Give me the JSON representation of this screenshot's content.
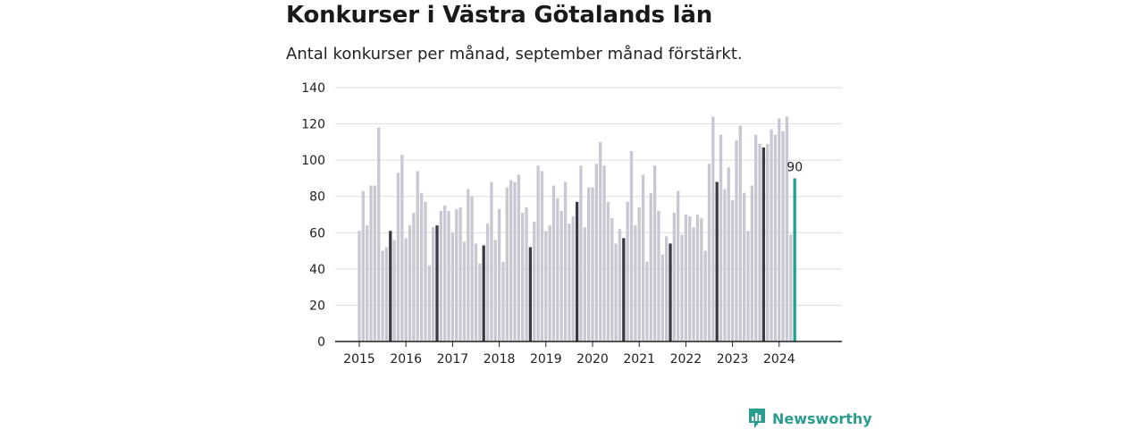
{
  "title": "Konkurser i Västra Götalands län",
  "subtitle": "Antal konkurser per månad, september månad förstärkt.",
  "brand": {
    "name": "Newsworthy"
  },
  "colors": {
    "bar": "#c8c8d2",
    "highlight_bar": "#3a3a44",
    "latest_bar": "#1aa391",
    "grid": "#dddddd",
    "axis": "#222222",
    "brand": "#2a9d8f"
  },
  "chart_data": {
    "type": "bar",
    "title": "Konkurser i Västra Götalands län",
    "subtitle": "Antal konkurser per månad, september månad förstärkt.",
    "ylim": [
      0,
      140
    ],
    "yticks": [
      0,
      20,
      40,
      60,
      80,
      100,
      120,
      140
    ],
    "grid": true,
    "xticks": [
      "2015",
      "2016",
      "2017",
      "2018",
      "2019",
      "2020",
      "2021",
      "2022",
      "2023",
      "2024"
    ],
    "start": "2015-01",
    "highlight_month": "september",
    "values": [
      61,
      83,
      64,
      86,
      86,
      118,
      50,
      52,
      61,
      56,
      93,
      103,
      57,
      64,
      71,
      94,
      82,
      77,
      42,
      63,
      64,
      72,
      75,
      72,
      60,
      73,
      74,
      55,
      84,
      80,
      54,
      43,
      53,
      65,
      88,
      56,
      73,
      44,
      85,
      89,
      88,
      92,
      71,
      74,
      52,
      66,
      97,
      94,
      61,
      64,
      86,
      79,
      72,
      88,
      65,
      69,
      77,
      97,
      63,
      85,
      85,
      98,
      110,
      97,
      77,
      68,
      54,
      62,
      57,
      77,
      105,
      64,
      74,
      92,
      44,
      82,
      97,
      72,
      48,
      58,
      54,
      71,
      83,
      59,
      70,
      69,
      63,
      70,
      68,
      50,
      98,
      124,
      88,
      114,
      84,
      96,
      78,
      111,
      119,
      82,
      61,
      86,
      114,
      109,
      107,
      109,
      117,
      114,
      123,
      116,
      124,
      59,
      90
    ],
    "latest_label": "90"
  }
}
